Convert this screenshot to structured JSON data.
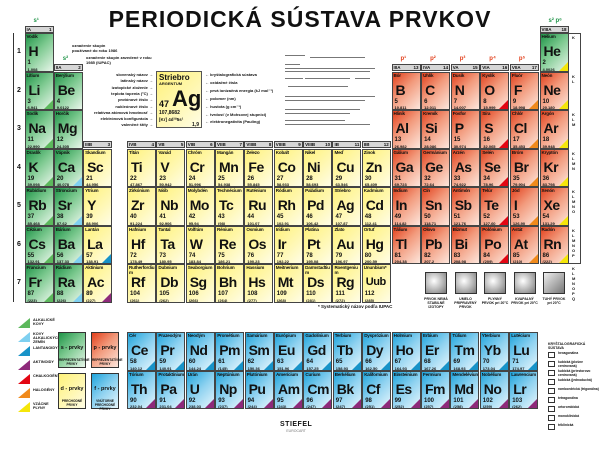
{
  "title": "PERIODICKÁ SÚSTAVA PRVKOV",
  "groups": [
    {
      "g": 1,
      "roman": "IA",
      "num": "1",
      "block": "s¹"
    },
    {
      "g": 2,
      "roman": "IIA",
      "num": "2",
      "block": "s²"
    },
    {
      "g": 3,
      "roman": "IIIB",
      "num": "3"
    },
    {
      "g": 4,
      "roman": "IVB",
      "num": "4"
    },
    {
      "g": 5,
      "roman": "VB",
      "num": "5"
    },
    {
      "g": 6,
      "roman": "VIB",
      "num": "6"
    },
    {
      "g": 7,
      "roman": "VIIB",
      "num": "7"
    },
    {
      "g": 8,
      "roman": "VIIIB",
      "num": "8"
    },
    {
      "g": 9,
      "roman": "VIIIB",
      "num": "9"
    },
    {
      "g": 10,
      "roman": "VIIIB",
      "num": "10"
    },
    {
      "g": 11,
      "roman": "IB",
      "num": "11"
    },
    {
      "g": 12,
      "roman": "IIB",
      "num": "12"
    },
    {
      "g": 13,
      "roman": "IIIA",
      "num": "13",
      "block": "p¹"
    },
    {
      "g": 14,
      "roman": "IVA",
      "num": "14",
      "block": "p²"
    },
    {
      "g": 15,
      "roman": "VA",
      "num": "15",
      "block": "p³"
    },
    {
      "g": 16,
      "roman": "VIA",
      "num": "16",
      "block": "p⁴"
    },
    {
      "g": 17,
      "roman": "VIIA",
      "num": "17",
      "block": "p⁵"
    },
    {
      "g": 18,
      "roman": "VIIIA",
      "num": "18",
      "block": "s² p⁶"
    }
  ],
  "periods": [
    "1",
    "2",
    "3",
    "4",
    "5",
    "6",
    "7"
  ],
  "shells": [
    "K",
    "K\nL",
    "K\nL\nM",
    "K\nL\nM\nN",
    "K\nL\nM\nN\nO",
    "K\nL\nM\nN\nO\nP",
    "K\nL\nM\nN\nO\nP\nQ"
  ],
  "colors": {
    "s": "#1f9448",
    "p": "#e2401c",
    "d": "#fff27a",
    "f": "#1ea4dc",
    "alkali": "#5cb85c",
    "alkaline_earth": "#7fd0f0",
    "lanthanoid": "#1893c8",
    "actinoid": "#8e2a7a",
    "chalcogen": "#e30613",
    "halogen": "#f08a1c",
    "noble_gas": "#f5e60a"
  },
  "elements": [
    [
      1,
      "H",
      "Vodík",
      "1,008",
      1,
      1,
      ""
    ],
    [
      2,
      "He",
      "Hélium",
      "4,0026",
      18,
      1,
      "noble_gas"
    ],
    [
      3,
      "Li",
      "Lítium",
      "6,941",
      1,
      2,
      "alkali"
    ],
    [
      4,
      "Be",
      "Berýlium",
      "9,0122",
      2,
      2,
      ""
    ],
    [
      5,
      "B",
      "Bór",
      "10,811",
      13,
      2,
      ""
    ],
    [
      6,
      "C",
      "Uhlík",
      "12,011",
      14,
      2,
      ""
    ],
    [
      7,
      "N",
      "Dusík",
      "14,007",
      15,
      2,
      ""
    ],
    [
      8,
      "O",
      "Kyslík",
      "15,999",
      16,
      2,
      "chalcogen"
    ],
    [
      9,
      "F",
      "Fluór",
      "18,998",
      17,
      2,
      "halogen"
    ],
    [
      10,
      "Ne",
      "Neón",
      "20,180",
      18,
      2,
      "noble_gas"
    ],
    [
      11,
      "Na",
      "Sodík",
      "22,990",
      1,
      3,
      "alkali"
    ],
    [
      12,
      "Mg",
      "Horčík",
      "24,305",
      2,
      3,
      ""
    ],
    [
      13,
      "Al",
      "Hliník",
      "26,982",
      13,
      3,
      ""
    ],
    [
      14,
      "Si",
      "Kremík",
      "28,086",
      14,
      3,
      ""
    ],
    [
      15,
      "P",
      "Fosfor",
      "30,974",
      15,
      3,
      ""
    ],
    [
      16,
      "S",
      "Síra",
      "32,065",
      16,
      3,
      "chalcogen"
    ],
    [
      17,
      "Cl",
      "Chlór",
      "35,453",
      17,
      3,
      "halogen"
    ],
    [
      18,
      "Ar",
      "Argón",
      "39,948",
      18,
      3,
      "noble_gas"
    ],
    [
      19,
      "K",
      "Draslík",
      "39,098",
      1,
      4,
      "alkali"
    ],
    [
      20,
      "Ca",
      "Vápnik",
      "40,078",
      2,
      4,
      "alkaline_earth"
    ],
    [
      21,
      "Sc",
      "Skandium",
      "44,956",
      3,
      4,
      ""
    ],
    [
      22,
      "Ti",
      "Titán",
      "47,867",
      4,
      4,
      ""
    ],
    [
      23,
      "V",
      "Vanád",
      "50,942",
      5,
      4,
      ""
    ],
    [
      24,
      "Cr",
      "Chróm",
      "51,996",
      6,
      4,
      ""
    ],
    [
      25,
      "Mn",
      "Mangán",
      "54,938",
      7,
      4,
      ""
    ],
    [
      26,
      "Fe",
      "Železo",
      "55,845",
      8,
      4,
      ""
    ],
    [
      27,
      "Co",
      "Kobalt",
      "58,933",
      9,
      4,
      ""
    ],
    [
      28,
      "Ni",
      "Nikel",
      "58,693",
      10,
      4,
      ""
    ],
    [
      29,
      "Cu",
      "Meď",
      "63,546",
      11,
      4,
      ""
    ],
    [
      30,
      "Zn",
      "Zinok",
      "65,409",
      12,
      4,
      ""
    ],
    [
      31,
      "Ga",
      "Gálium",
      "69,723",
      13,
      4,
      ""
    ],
    [
      32,
      "Ge",
      "Germánium",
      "72,64",
      14,
      4,
      ""
    ],
    [
      33,
      "As",
      "Arzén",
      "74,922",
      15,
      4,
      ""
    ],
    [
      34,
      "Se",
      "Selén",
      "78,96",
      16,
      4,
      "chalcogen"
    ],
    [
      35,
      "Br",
      "Bróm",
      "79,904",
      17,
      4,
      "halogen"
    ],
    [
      36,
      "Kr",
      "Kryptón",
      "83,798",
      18,
      4,
      "noble_gas"
    ],
    [
      37,
      "Rb",
      "Rubídium",
      "85,468",
      1,
      5,
      "alkali"
    ],
    [
      38,
      "Sr",
      "Stroncium",
      "87,62",
      2,
      5,
      "alkaline_earth"
    ],
    [
      39,
      "Y",
      "Ytrium",
      "88,906",
      3,
      5,
      ""
    ],
    [
      40,
      "Zr",
      "Zirkónium",
      "91,224",
      4,
      5,
      ""
    ],
    [
      41,
      "Nb",
      "Niób",
      "92,906",
      5,
      5,
      ""
    ],
    [
      42,
      "Mo",
      "Molybdén",
      "95,94",
      6,
      5,
      ""
    ],
    [
      43,
      "Tc",
      "Technécium",
      "(98)",
      7,
      5,
      ""
    ],
    [
      44,
      "Ru",
      "Ruténium",
      "101,07",
      8,
      5,
      ""
    ],
    [
      45,
      "Rh",
      "Ródium",
      "102,91",
      9,
      5,
      ""
    ],
    [
      46,
      "Pd",
      "Paládium",
      "106,42",
      10,
      5,
      ""
    ],
    [
      47,
      "Ag",
      "Striebro",
      "107,87",
      11,
      5,
      ""
    ],
    [
      48,
      "Cd",
      "Kadmium",
      "112,41",
      12,
      5,
      ""
    ],
    [
      49,
      "In",
      "Indium",
      "114,82",
      13,
      5,
      ""
    ],
    [
      50,
      "Sn",
      "Cín",
      "118,71",
      14,
      5,
      ""
    ],
    [
      51,
      "Sb",
      "Antimón",
      "121,76",
      15,
      5,
      ""
    ],
    [
      52,
      "Te",
      "Telúr",
      "127,60",
      16,
      5,
      "chalcogen"
    ],
    [
      53,
      "I",
      "Jód",
      "126,90",
      17,
      5,
      "halogen"
    ],
    [
      54,
      "Xe",
      "Xenón",
      "131,29",
      18,
      5,
      "noble_gas"
    ],
    [
      55,
      "Cs",
      "Cézium",
      "132,91",
      1,
      6,
      "alkali"
    ],
    [
      56,
      "Ba",
      "Bárium",
      "137,33",
      2,
      6,
      "alkaline_earth"
    ],
    [
      57,
      "La",
      "Lantán",
      "138,91",
      3,
      6,
      "lanthanoid"
    ],
    [
      72,
      "Hf",
      "Hafnium",
      "178,49",
      4,
      6,
      ""
    ],
    [
      73,
      "Ta",
      "Tantal",
      "180,95",
      5,
      6,
      ""
    ],
    [
      74,
      "W",
      "Volfrám",
      "183,84",
      6,
      6,
      ""
    ],
    [
      75,
      "Re",
      "Rénium",
      "186,21",
      7,
      6,
      ""
    ],
    [
      76,
      "Os",
      "Osmium",
      "190,23",
      8,
      6,
      ""
    ],
    [
      77,
      "Ir",
      "Irídium",
      "192,22",
      9,
      6,
      ""
    ],
    [
      78,
      "Pt",
      "Platina",
      "195,08",
      10,
      6,
      ""
    ],
    [
      79,
      "Au",
      "Zlato",
      "196,97",
      11,
      6,
      ""
    ],
    [
      80,
      "Hg",
      "Ortuť",
      "200,59",
      12,
      6,
      ""
    ],
    [
      81,
      "Tl",
      "Tálium",
      "204,38",
      13,
      6,
      ""
    ],
    [
      82,
      "Pb",
      "Olovo",
      "207,2",
      14,
      6,
      ""
    ],
    [
      83,
      "Bi",
      "Bizmut",
      "208,98",
      15,
      6,
      ""
    ],
    [
      84,
      "Po",
      "Polónium",
      "(209)",
      16,
      6,
      "chalcogen"
    ],
    [
      85,
      "At",
      "Astát",
      "(210)",
      17,
      6,
      "halogen"
    ],
    [
      86,
      "Rn",
      "Radón",
      "(222)",
      18,
      6,
      "noble_gas"
    ],
    [
      87,
      "Fr",
      "Francium",
      "(223)",
      1,
      7,
      "alkali"
    ],
    [
      88,
      "Ra",
      "Rádium",
      "(226)",
      2,
      7,
      "alkaline_earth"
    ],
    [
      89,
      "Ac",
      "Aktínium",
      "(227)",
      3,
      7,
      "actinoid"
    ],
    [
      104,
      "Rf",
      "Rutherfordium",
      "(261)",
      4,
      7,
      ""
    ],
    [
      105,
      "Db",
      "Dubnium",
      "(262)",
      5,
      7,
      ""
    ],
    [
      106,
      "Sg",
      "Seaborgium",
      "(266)",
      6,
      7,
      ""
    ],
    [
      107,
      "Bh",
      "Bohrium",
      "(264)",
      7,
      7,
      ""
    ],
    [
      108,
      "Hs",
      "Hassium",
      "(277)",
      8,
      7,
      ""
    ],
    [
      109,
      "Mt",
      "Meitnerium",
      "(268)",
      9,
      7,
      ""
    ],
    [
      110,
      "Ds",
      "Darmstadtium",
      "(281)",
      10,
      7,
      ""
    ],
    [
      111,
      "Rg",
      "Roentgenium",
      "(272)",
      11,
      7,
      ""
    ],
    [
      112,
      "Uub",
      "Ununbium*",
      "(285)",
      12,
      7,
      ""
    ]
  ],
  "lanthanides": [
    [
      58,
      "Ce",
      "Cér",
      "140,12"
    ],
    [
      59,
      "Pr",
      "Prazeodým",
      "140,91"
    ],
    [
      60,
      "Nd",
      "Neodým",
      "144,24"
    ],
    [
      61,
      "Pm",
      "Prométium",
      "(145)"
    ],
    [
      62,
      "Sm",
      "Samárium",
      "150,36"
    ],
    [
      63,
      "Eu",
      "Európium",
      "151,96"
    ],
    [
      64,
      "Gd",
      "Gadolínium",
      "157,25"
    ],
    [
      65,
      "Tb",
      "Terbium",
      "158,93"
    ],
    [
      66,
      "Dy",
      "Dysprózium",
      "162,50"
    ],
    [
      67,
      "Ho",
      "Holmium",
      "164,93"
    ],
    [
      68,
      "Er",
      "Erbium",
      "167,26"
    ],
    [
      69,
      "Tm",
      "Túlium",
      "168,93"
    ],
    [
      70,
      "Yb",
      "Yterbium",
      "173,04"
    ],
    [
      71,
      "Lu",
      "Lutécium",
      "174,97"
    ]
  ],
  "actinides": [
    [
      90,
      "Th",
      "Tórium",
      "232,04"
    ],
    [
      91,
      "Pa",
      "Protaktínium",
      "231,04"
    ],
    [
      92,
      "U",
      "Urán",
      "238,03"
    ],
    [
      93,
      "Np",
      "Neptúnium",
      "(237)"
    ],
    [
      94,
      "Pu",
      "Plutónium",
      "(244)"
    ],
    [
      95,
      "Am",
      "Amerícium",
      "(243)"
    ],
    [
      96,
      "Cm",
      "Curium",
      "(247)"
    ],
    [
      97,
      "Bk",
      "Berkélium",
      "(247)"
    ],
    [
      98,
      "Cf",
      "Kalifornium",
      "(251)"
    ],
    [
      99,
      "Es",
      "Einsteinium",
      "(252)"
    ],
    [
      100,
      "Fm",
      "Fermium",
      "(257)"
    ],
    [
      101,
      "Md",
      "Mendelévium",
      "(258)"
    ],
    [
      102,
      "No",
      "Nobélium",
      "(259)"
    ],
    [
      103,
      "Lr",
      "Lawrencium",
      "(262)"
    ]
  ],
  "key": {
    "name": "Striebro",
    "latin": "ARGENTUM",
    "z": "47",
    "symbol": "Ag",
    "mass": "107,8682",
    "config": "[Kr] 4d¹⁰5s¹",
    "en": "1,9",
    "notes": {
      "old": "označenie skupín používané do roku 1986",
      "new": "označenie skupín zavedené v roku 1985 (IUPAC)"
    },
    "left": [
      "slovenský názov",
      "latinský názov",
      "izotopické zloženie",
      "teplota topenia (°C)",
      "protónové číslo",
      "nukleónové číslo",
      "relatívna atómová hmotnosť",
      "elektrónová konfigurácia",
      "valenčné štíty"
    ],
    "right": [
      "kryštalografická sústava",
      "oxidačné čísla",
      "prvá ionizačná energia (kJ mol⁻¹)",
      "polomer (nm)",
      "hustota (g cm⁻³)",
      "tvrdosť (v Mohsovej stupnici)",
      "elektronegativita (Pauling)"
    ]
  },
  "footnote": "* Systematický názov podľa IUPAC",
  "legend": [
    {
      "label": "ALKALICKÉ KOVY",
      "key": "alkali"
    },
    {
      "label": "KOVY ALKALICKÝCH ZEMÍN",
      "key": "alkaline_earth"
    },
    {
      "label": "LANTANOIDY",
      "key": "lanthanoid"
    },
    {
      "label": "AKTINOIDY",
      "key": "actinoid"
    },
    {
      "label": "CHALKOGÉNY",
      "key": "chalcogen"
    },
    {
      "label": "HALOGÉNY",
      "key": "halogen"
    },
    {
      "label": "VZÁCNE PLYNY",
      "key": "noble_gas"
    }
  ],
  "blocks": [
    {
      "title": "s - prvky",
      "sub": "REPREZENTATÍVNE PRVKY"
    },
    {
      "title": "p - prvky",
      "sub": "REPREZENTATÍVNE PRVKY"
    },
    {
      "title": "d - prvky",
      "sub": "PRECHODNÉ PRVKY"
    },
    {
      "title": "f - prvky",
      "sub": "VNÚTORNE PRECHODNÉ PRVKY"
    }
  ],
  "states": [
    "PRVOK NEMÁ STABILNÉ IZOTOPY",
    "UMELO PRIPRAVENÝ PRVOK",
    "PLYNNÝ PRVOK pri 20°C",
    "KVAPALNÝ PRVOK pri 20°C",
    "TUHÝ PRVOK pri 20°C"
  ],
  "crystal": {
    "title": "KRYŠTALOGRAFICKÁ SÚSTAVA",
    "items": [
      "hexagonálna",
      "kubická (plošne centrovaná)",
      "kubická (priestorovo centrovaná)",
      "kubická (jednoduchá)",
      "romboedrická (trigonálna)",
      "tetragonálna",
      "ortorombická",
      "monoklinická",
      "triklinická"
    ]
  },
  "publisher": {
    "logo": "STIEFEL",
    "sub": "EUROCART"
  }
}
